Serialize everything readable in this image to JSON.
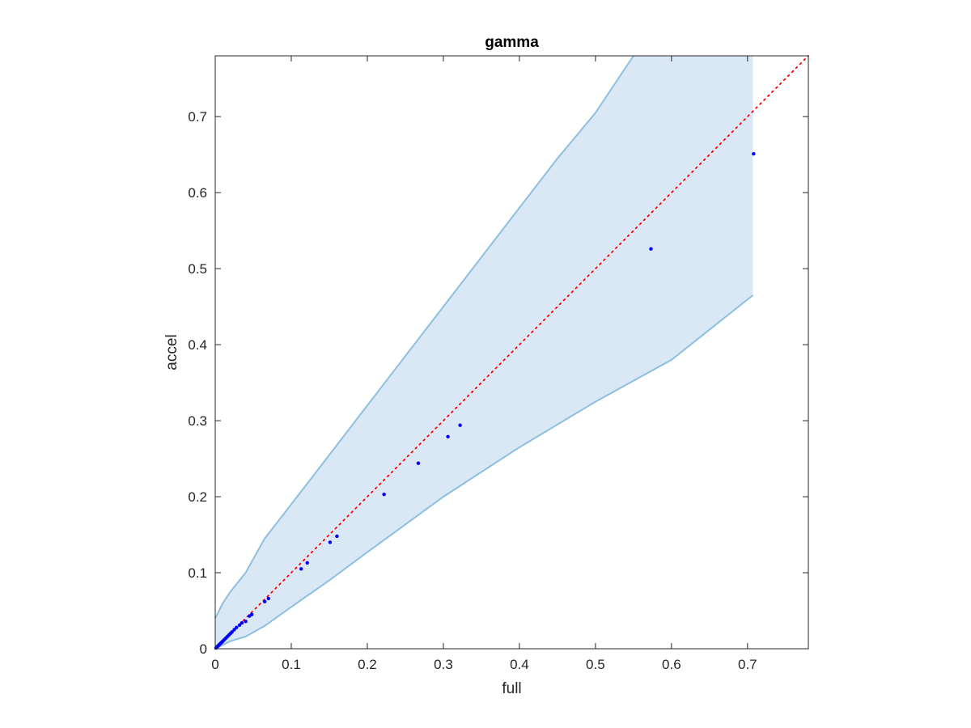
{
  "chart_data": {
    "type": "scatter",
    "title": "gamma",
    "xlabel": "full",
    "ylabel": "accel",
    "xlim": [
      0,
      0.78
    ],
    "ylim": [
      0,
      0.78
    ],
    "xticks": [
      0,
      0.1,
      0.2,
      0.3,
      0.4,
      0.5,
      0.6,
      0.7
    ],
    "yticks": [
      0,
      0.1,
      0.2,
      0.3,
      0.4,
      0.5,
      0.6,
      0.7
    ],
    "xtick_labels": [
      "0",
      "0.1",
      "0.2",
      "0.3",
      "0.4",
      "0.5",
      "0.6",
      "0.7"
    ],
    "ytick_labels": [
      "0",
      "0.1",
      "0.2",
      "0.3",
      "0.4",
      "0.5",
      "0.6",
      "0.7"
    ],
    "grid": false,
    "reference_line": {
      "x": [
        0,
        0.78
      ],
      "y": [
        0,
        0.78
      ],
      "style": "dotted",
      "color": "#ff0000"
    },
    "band": {
      "color": "#dae8f5",
      "edge_color": "#8cbfe0",
      "upper": [
        [
          0,
          0.04
        ],
        [
          0.005,
          0.05
        ],
        [
          0.01,
          0.06
        ],
        [
          0.02,
          0.075
        ],
        [
          0.04,
          0.1
        ],
        [
          0.065,
          0.145
        ],
        [
          0.1,
          0.19
        ],
        [
          0.15,
          0.255
        ],
        [
          0.2,
          0.32
        ],
        [
          0.25,
          0.385
        ],
        [
          0.3,
          0.45
        ],
        [
          0.35,
          0.515
        ],
        [
          0.4,
          0.58
        ],
        [
          0.45,
          0.645
        ],
        [
          0.5,
          0.705
        ],
        [
          0.55,
          0.78
        ]
      ],
      "upper_right": [
        [
          0.707,
          0.78
        ]
      ],
      "lower": [
        [
          0,
          0
        ],
        [
          0.02,
          0.01
        ],
        [
          0.04,
          0.016
        ],
        [
          0.065,
          0.03
        ],
        [
          0.1,
          0.055
        ],
        [
          0.15,
          0.09
        ],
        [
          0.2,
          0.127
        ],
        [
          0.3,
          0.2
        ],
        [
          0.4,
          0.265
        ],
        [
          0.5,
          0.325
        ],
        [
          0.6,
          0.38
        ],
        [
          0.707,
          0.465
        ]
      ]
    },
    "series": [
      {
        "color": "#0000ff",
        "points": [
          [
            0.001,
            0.001
          ],
          [
            0.002,
            0.002
          ],
          [
            0.003,
            0.003
          ],
          [
            0.004,
            0.004
          ],
          [
            0.005,
            0.005
          ],
          [
            0.006,
            0.006
          ],
          [
            0.007,
            0.007
          ],
          [
            0.008,
            0.008
          ],
          [
            0.009,
            0.009
          ],
          [
            0.01,
            0.01
          ],
          [
            0.012,
            0.012
          ],
          [
            0.014,
            0.014
          ],
          [
            0.016,
            0.016
          ],
          [
            0.018,
            0.018
          ],
          [
            0.02,
            0.02
          ],
          [
            0.022,
            0.022
          ],
          [
            0.025,
            0.025
          ],
          [
            0.028,
            0.028
          ],
          [
            0.032,
            0.031
          ],
          [
            0.035,
            0.034
          ],
          [
            0.04,
            0.036
          ],
          [
            0.045,
            0.043
          ],
          [
            0.048,
            0.045
          ],
          [
            0.065,
            0.062
          ],
          [
            0.07,
            0.066
          ],
          [
            0.113,
            0.105
          ],
          [
            0.121,
            0.113
          ],
          [
            0.151,
            0.14
          ],
          [
            0.16,
            0.148
          ],
          [
            0.222,
            0.203
          ],
          [
            0.267,
            0.244
          ],
          [
            0.306,
            0.279
          ],
          [
            0.322,
            0.294
          ],
          [
            0.573,
            0.526
          ],
          [
            0.708,
            0.651
          ]
        ]
      }
    ]
  }
}
